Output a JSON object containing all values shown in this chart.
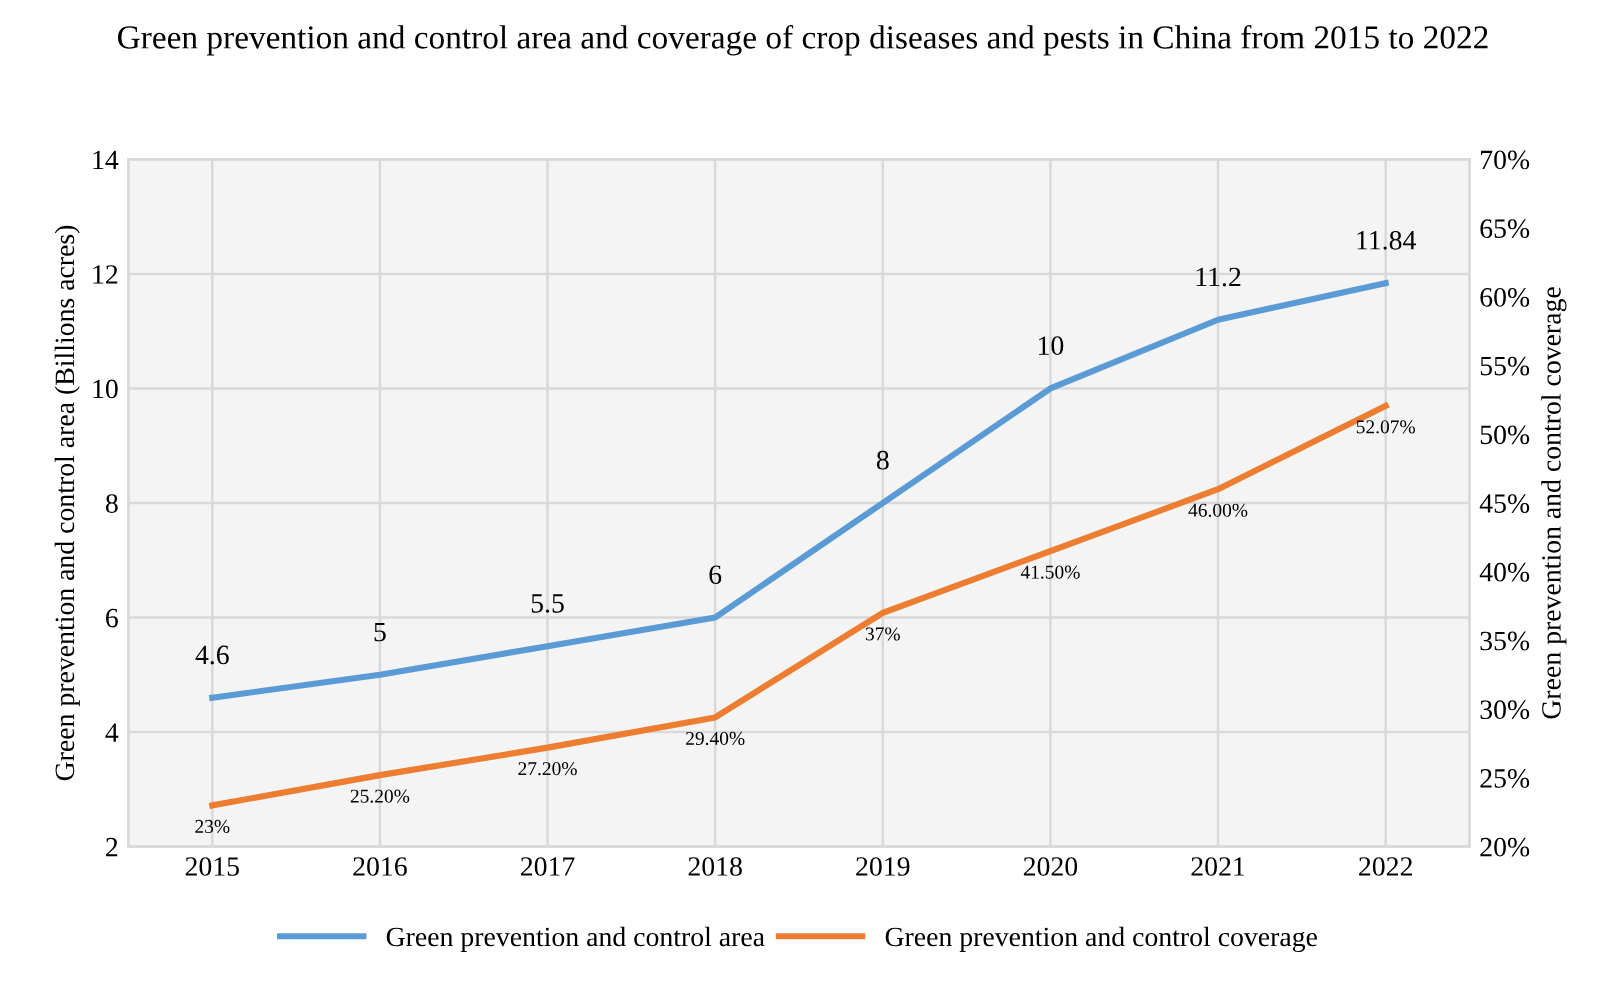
{
  "chart_data": {
    "type": "line",
    "title": "Green prevention and control area and coverage of crop diseases and pests in China from 2015 to 2022",
    "ylabel": "Green prevention and control area (Billions acres)",
    "y2label": "Green prevention and control coverage",
    "categories": [
      "2015",
      "2016",
      "2017",
      "2018",
      "2019",
      "2020",
      "2021",
      "2022"
    ],
    "series": [
      {
        "name": "Green prevention and control area",
        "color": "#5b9bd5",
        "values": [
          4.6,
          5,
          5.5,
          6,
          8,
          10,
          11.2,
          11.84
        ],
        "value_labels": [
          "4.6",
          "5",
          "5.5",
          "6",
          "8",
          "10",
          "11.2",
          "11.84"
        ]
      },
      {
        "name": "Green prevention and control coverage",
        "color": "#ed7d31",
        "axis": "y2",
        "values": [
          23,
          25.2,
          27.2,
          29.4,
          37,
          41.5,
          46.0,
          52.07
        ],
        "value_labels": [
          "23%",
          "25.20%",
          "27.20%",
          "29.40%",
          "37%",
          "41.50%",
          "46.00%",
          "52.07%"
        ]
      }
    ],
    "ylim": [
      2,
      14
    ],
    "yticks": [
      2,
      4,
      6,
      8,
      10,
      12,
      14
    ],
    "y2lim": [
      20,
      70
    ],
    "y2ticks": [
      {
        "value": 20,
        "label": "20%"
      },
      {
        "value": 25,
        "label": "25%"
      },
      {
        "value": 30,
        "label": "30%"
      },
      {
        "value": 35,
        "label": "35%"
      },
      {
        "value": 40,
        "label": "40%"
      },
      {
        "value": 45,
        "label": "45%"
      },
      {
        "value": 50,
        "label": "50%"
      },
      {
        "value": 55,
        "label": "55%"
      },
      {
        "value": 60,
        "label": "60%"
      },
      {
        "value": 65,
        "label": "65%"
      },
      {
        "value": 70,
        "label": "70%"
      }
    ],
    "grid": true,
    "legend": "bottom",
    "marker": "none",
    "line_style": "solid"
  }
}
